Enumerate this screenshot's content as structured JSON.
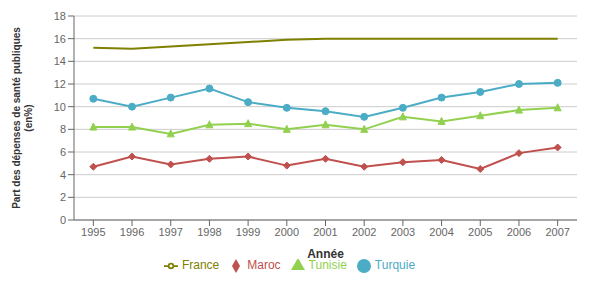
{
  "chart_data": {
    "type": "line",
    "x_label": "Année",
    "y_label": "Part des dépenses de santé publiques\n(en%)",
    "x": [
      1995,
      1996,
      1997,
      1998,
      1999,
      2000,
      2001,
      2002,
      2003,
      2004,
      2005,
      2006,
      2007
    ],
    "xlim": [
      1994.5,
      2007.5
    ],
    "xticks": [
      1995,
      1996,
      1997,
      1998,
      1999,
      2000,
      2001,
      2002,
      2003,
      2004,
      2005,
      2006,
      2007
    ],
    "ylim": [
      0,
      18
    ],
    "yticks": [
      0,
      2,
      4,
      6,
      8,
      10,
      12,
      14,
      16,
      18
    ],
    "grid": true,
    "legend": "bottom",
    "series": [
      {
        "name": "Tunisie",
        "color": "#92d050",
        "marker": "triangle",
        "values": [
          8.2,
          8.2,
          7.6,
          8.4,
          8.5,
          8.0,
          8.4,
          8.0,
          9.1,
          8.7,
          9.2,
          9.7,
          9.9
        ]
      },
      {
        "name": "France",
        "color": "#808000",
        "marker": "none",
        "values": [
          15.2,
          15.1,
          15.3,
          15.5,
          15.7,
          15.9,
          16.0,
          16.0,
          16.0,
          16.0,
          16.0,
          16.0,
          16.0
        ]
      },
      {
        "name": "Maroc",
        "color": "#c0504d",
        "marker": "diamond",
        "values": [
          4.7,
          5.6,
          4.9,
          5.4,
          5.6,
          4.8,
          5.4,
          4.7,
          5.1,
          5.3,
          4.5,
          5.9,
          6.4
        ]
      },
      {
        "name": "Turquie",
        "color": "#4bacc6",
        "marker": "circle",
        "values": [
          10.7,
          10.0,
          10.8,
          11.6,
          10.4,
          9.9,
          9.6,
          9.1,
          9.9,
          10.8,
          11.3,
          12.0,
          12.1
        ]
      }
    ]
  }
}
